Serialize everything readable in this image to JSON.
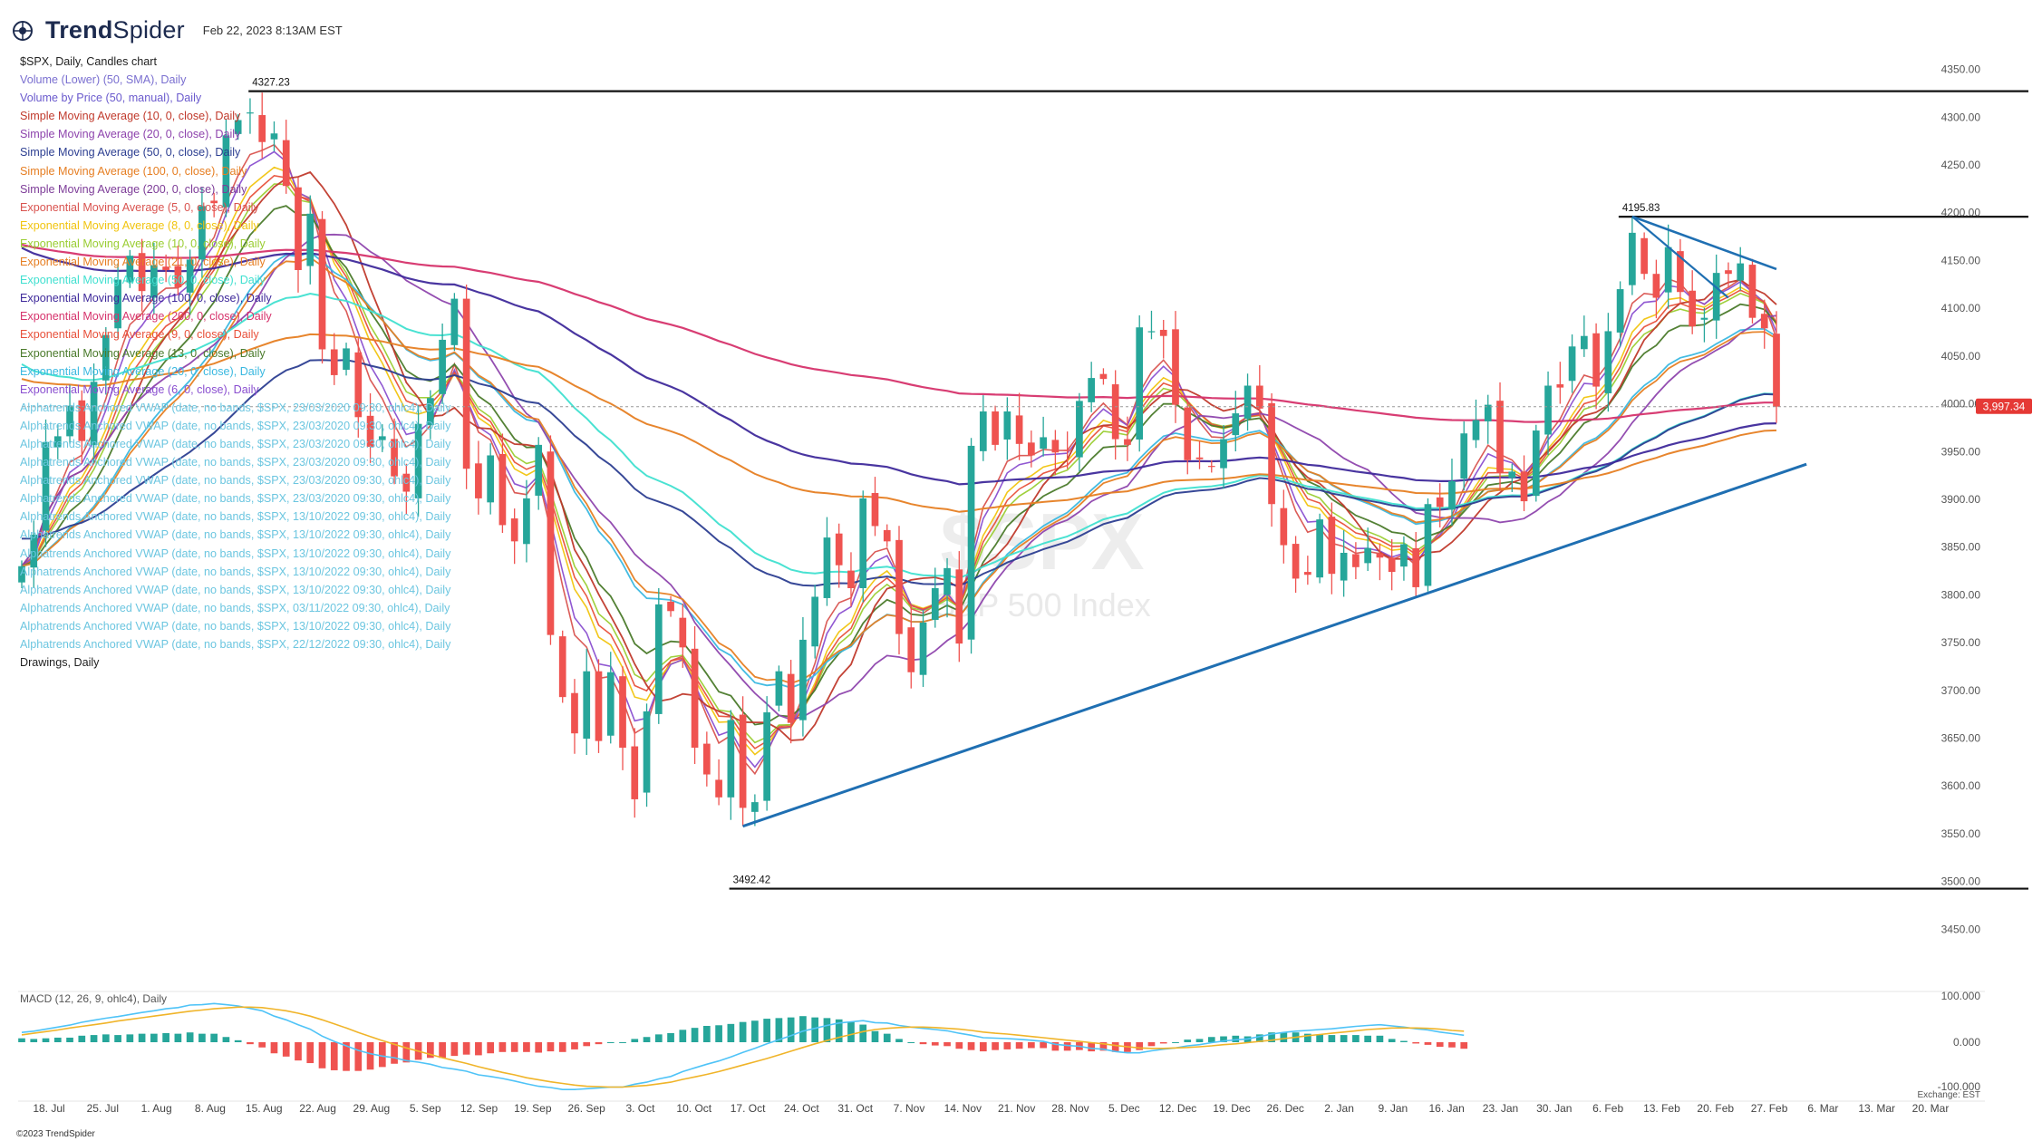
{
  "header": {
    "brand_bold": "Trend",
    "brand_light": "Spider",
    "datetime": "Feb 22, 2023 8:13AM EST"
  },
  "legend": [
    {
      "text": "$SPX, Daily, Candles chart",
      "color": "#222222"
    },
    {
      "text": "Volume (Lower) (50, SMA), Daily",
      "color": "#7a6fd0"
    },
    {
      "text": "Volume by Price (50, manual), Daily",
      "color": "#6a5acd"
    },
    {
      "text": "Simple Moving Average (10, 0, close), Daily",
      "color": "#c0392b"
    },
    {
      "text": "Simple Moving Average (20, 0, close), Daily",
      "color": "#8e44ad"
    },
    {
      "text": "Simple Moving Average (50, 0, close), Daily",
      "color": "#2c3e91"
    },
    {
      "text": "Simple Moving Average (100, 0, close), Daily",
      "color": "#e67e22"
    },
    {
      "text": "Simple Moving Average (200, 0, close), Daily",
      "color": "#7d3c98"
    },
    {
      "text": "Exponential Moving Average (5, 0, close), Daily",
      "color": "#d9534f"
    },
    {
      "text": "Exponential Moving Average (8, 0, close), Daily",
      "color": "#f1c40f"
    },
    {
      "text": "Exponential Moving Average (10, 0, close), Daily",
      "color": "#9acd32"
    },
    {
      "text": "Exponential Moving Average (21, 0, close), Daily",
      "color": "#e67e22"
    },
    {
      "text": "Exponential Moving Average (50, 0, close), Daily",
      "color": "#40e0d0"
    },
    {
      "text": "Exponential Moving Average (100, 0, close), Daily",
      "color": "#3f2a9b"
    },
    {
      "text": "Exponential Moving Average (200, 0, close), Daily",
      "color": "#d6336c"
    },
    {
      "text": "Exponential Moving Average (9, 0, close), Daily",
      "color": "#e8503a"
    },
    {
      "text": "Exponential Moving Average (13, 0, close), Daily",
      "color": "#4a7a2a"
    },
    {
      "text": "Exponential Moving Average (20, 0, close), Daily",
      "color": "#3ab8e0"
    },
    {
      "text": "Exponential Moving Average (6, 0, close), Daily",
      "color": "#8a4fd0"
    },
    {
      "text": "Alphatrends Anchored VWAP (date, no bands, $SPX, 23/03/2020 09:30, ohlc4), Daily",
      "color": "#6cc6e0"
    },
    {
      "text": "Alphatrends Anchored VWAP (date, no bands, $SPX, 23/03/2020 09:30, ohlc4), Daily",
      "color": "#6cc6e0"
    },
    {
      "text": "Alphatrends Anchored VWAP (date, no bands, $SPX, 23/03/2020 09:30, ohlc4), Daily",
      "color": "#6cc6e0"
    },
    {
      "text": "Alphatrends Anchored VWAP (date, no bands, $SPX, 23/03/2020 09:30, ohlc4), Daily",
      "color": "#6cc6e0"
    },
    {
      "text": "Alphatrends Anchored VWAP (date, no bands, $SPX, 23/03/2020 09:30, ohlc4), Daily",
      "color": "#6cc6e0"
    },
    {
      "text": "Alphatrends Anchored VWAP (date, no bands, $SPX, 23/03/2020 09:30, ohlc4), Daily",
      "color": "#6cc6e0"
    },
    {
      "text": "Alphatrends Anchored VWAP (date, no bands, $SPX, 13/10/2022 09:30, ohlc4), Daily",
      "color": "#6cc6e0"
    },
    {
      "text": "Alphatrends Anchored VWAP (date, no bands, $SPX, 13/10/2022 09:30, ohlc4), Daily",
      "color": "#6cc6e0"
    },
    {
      "text": "Alphatrends Anchored VWAP (date, no bands, $SPX, 13/10/2022 09:30, ohlc4), Daily",
      "color": "#6cc6e0"
    },
    {
      "text": "Alphatrends Anchored VWAP (date, no bands, $SPX, 13/10/2022 09:30, ohlc4), Daily",
      "color": "#6cc6e0"
    },
    {
      "text": "Alphatrends Anchored VWAP (date, no bands, $SPX, 13/10/2022 09:30, ohlc4), Daily",
      "color": "#6cc6e0"
    },
    {
      "text": "Alphatrends Anchored VWAP (date, no bands, $SPX, 03/11/2022 09:30, ohlc4), Daily",
      "color": "#6cc6e0"
    },
    {
      "text": "Alphatrends Anchored VWAP (date, no bands, $SPX, 13/10/2022 09:30, ohlc4), Daily",
      "color": "#6cc6e0"
    },
    {
      "text": "Alphatrends Anchored VWAP (date, no bands, $SPX, 22/12/2022 09:30, ohlc4), Daily",
      "color": "#6cc6e0"
    },
    {
      "text": "Drawings, Daily",
      "color": "#222222"
    }
  ],
  "watermark": {
    "symbol": "$SPX",
    "name": "S&P 500 Index"
  },
  "macd": {
    "label": "MACD (12, 26, 9, ohlc4), Daily",
    "ticks": [
      "100.000",
      "0.000",
      "-100.000"
    ],
    "exchange": "Exchange: EST"
  },
  "copyright": "©2023 TrendSpider",
  "colors": {
    "up": "#26a69a",
    "down": "#ef5350",
    "trendline": "#1f6fb2",
    "level": "#111111",
    "price_tag": "#e53935",
    "macd_line": "#4fc3f7",
    "signal_line": "#f0b429"
  },
  "chart_data": {
    "type": "candlestick",
    "symbol": "$SPX",
    "timeframe": "Daily",
    "y_range": [
      3400,
      4380
    ],
    "y_ticks": [
      4350,
      4300,
      4250,
      4200,
      4150,
      4100,
      4050,
      4000,
      3950,
      3900,
      3850,
      3800,
      3750,
      3700,
      3650,
      3600,
      3550,
      3500,
      3450
    ],
    "x_tick_labels": [
      "18. Jul",
      "25. Jul",
      "1. Aug",
      "8. Aug",
      "15. Aug",
      "22. Aug",
      "29. Aug",
      "5. Sep",
      "12. Sep",
      "19. Sep",
      "26. Sep",
      "3. Oct",
      "10. Oct",
      "17. Oct",
      "24. Oct",
      "31. Oct",
      "7. Nov",
      "14. Nov",
      "21. Nov",
      "28. Nov",
      "5. Dec",
      "12. Dec",
      "19. Dec",
      "26. Dec",
      "2. Jan",
      "9. Jan",
      "16. Jan",
      "23. Jan",
      "30. Jan",
      "6. Feb",
      "13. Feb",
      "20. Feb",
      "27. Feb",
      "6. Mar",
      "13. Mar",
      "20. Mar"
    ],
    "last_price": "3,997.34",
    "levels": [
      {
        "label": "4327.23",
        "value": 4327.23
      },
      {
        "label": "4195.83",
        "value": 4195.83
      },
      {
        "label": "3492.42",
        "value": 3492.42
      }
    ],
    "closes": [
      3830,
      3863,
      3960,
      3966,
      3998,
      3961,
      4023,
      4072,
      4130,
      4155,
      4118,
      4145,
      4140,
      4122,
      4151,
      4207,
      4210,
      4281,
      4297,
      4305,
      4274,
      4283,
      4228,
      4140,
      4199,
      4057,
      4030,
      4058,
      3986,
      3955,
      3966,
      3924,
      3908,
      3979,
      4006,
      4067,
      4110,
      3932,
      3901,
      3946,
      3873,
      3856,
      3901,
      3957,
      3758,
      3693,
      3655,
      3720,
      3647,
      3719,
      3640,
      3586,
      3678,
      3790,
      3783,
      3745,
      3640,
      3612,
      3588,
      3669,
      3577,
      3583,
      3677,
      3720,
      3666,
      3753,
      3798,
      3860,
      3831,
      3807,
      3901,
      3872,
      3856,
      3759,
      3719,
      3771,
      3807,
      3828,
      3749,
      3956,
      3992,
      3957,
      3992,
      3958,
      3946,
      3965,
      3949,
      3951,
      4003,
      4027,
      4026,
      3963,
      3957,
      4080,
      4076,
      4071,
      3999,
      3941,
      3942,
      3934,
      3963,
      3990,
      4019,
      3995,
      3895,
      3852,
      3817,
      3821,
      3879,
      3822,
      3844,
      3829,
      3849,
      3839,
      3824,
      3853,
      3808,
      3895,
      3892,
      3919,
      3969,
      3983,
      3999,
      3928,
      3929,
      3898,
      3972,
      4019,
      4017,
      4060,
      4071,
      4018,
      4076,
      4120,
      4179,
      4136,
      4111,
      4164,
      4117,
      4081,
      4090,
      4137,
      4136,
      4147,
      4090,
      4079,
      3997
    ],
    "macd": [
      24,
      27,
      32,
      37,
      42,
      49,
      54,
      59,
      63,
      68,
      73,
      77,
      82,
      85,
      91,
      92,
      95,
      92,
      89,
      83,
      77,
      64,
      55,
      43,
      32,
      15,
      2,
      -9,
      -20,
      -28,
      -34,
      -38,
      -45,
      -49,
      -54,
      -62,
      -66,
      -71,
      -80,
      -84,
      -89,
      -95,
      -102,
      -108,
      -111,
      -116,
      -116,
      -114,
      -112,
      -110,
      -110,
      -103,
      -98,
      -90,
      -84,
      -72,
      -63,
      -54,
      -46,
      -36,
      -25,
      -15,
      -4,
      6,
      16,
      27,
      34,
      41,
      47,
      50,
      53,
      48,
      47,
      41,
      37,
      34,
      31,
      28,
      22,
      17,
      11,
      10,
      9,
      7,
      5,
      2,
      -5,
      -8,
      -10,
      -15,
      -17,
      -23,
      -26,
      -26,
      -21,
      -17,
      -14,
      -9,
      -6,
      -1,
      3,
      6,
      8,
      14,
      20,
      24,
      27,
      29,
      31,
      33,
      36,
      39,
      41,
      43,
      40,
      37,
      33,
      30,
      25,
      21,
      17
    ],
    "signal": [
      18,
      22,
      26,
      30,
      35,
      39,
      43,
      47,
      52,
      56,
      60,
      64,
      68,
      72,
      76,
      79,
      82,
      84,
      86,
      86,
      85,
      81,
      77,
      71,
      64,
      55,
      45,
      35,
      24,
      14,
      4,
      -5,
      -14,
      -22,
      -30,
      -38,
      -45,
      -52,
      -60,
      -67,
      -74,
      -80,
      -87,
      -92,
      -97,
      -101,
      -105,
      -108,
      -109,
      -110,
      -110,
      -108,
      -106,
      -102,
      -98,
      -91,
      -85,
      -79,
      -72,
      -64,
      -56,
      -48,
      -40,
      -31,
      -22,
      -13,
      -4,
      4,
      12,
      19,
      26,
      31,
      34,
      36,
      37,
      37,
      36,
      34,
      32,
      29,
      25,
      22,
      20,
      17,
      14,
      11,
      8,
      5,
      2,
      -1,
      -4,
      -8,
      -11,
      -14,
      -15,
      -15,
      -14,
      -13,
      -11,
      -9,
      -6,
      -4,
      -1,
      2,
      5,
      9,
      12,
      16,
      19,
      22,
      25,
      28,
      31,
      33,
      35,
      35,
      35,
      34,
      32,
      29,
      27
    ]
  }
}
